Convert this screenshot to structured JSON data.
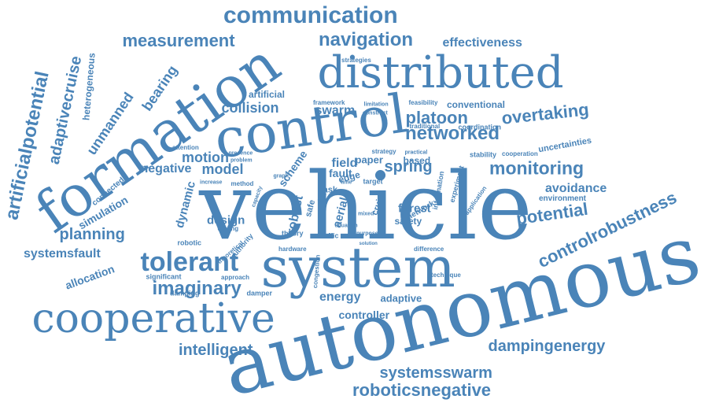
{
  "color": "#4a84b8",
  "words": [
    {
      "text": "vehicle"
    },
    {
      "text": "autonomous"
    },
    {
      "text": "system"
    },
    {
      "text": "distributed"
    },
    {
      "text": "control"
    },
    {
      "text": "formation"
    },
    {
      "text": "cooperative"
    },
    {
      "text": "communication"
    },
    {
      "text": "navigation"
    },
    {
      "text": "measurement"
    },
    {
      "text": "effectiveness"
    },
    {
      "text": "networked"
    },
    {
      "text": "overtaking"
    },
    {
      "text": "platoon"
    },
    {
      "text": "monitoring"
    },
    {
      "text": "avoidance"
    },
    {
      "text": "environment"
    },
    {
      "text": "uncertainties"
    },
    {
      "text": "potential"
    },
    {
      "text": "controlrobustness"
    },
    {
      "text": "tolerant"
    },
    {
      "text": "imaginary"
    },
    {
      "text": "planning"
    },
    {
      "text": "systemsfault"
    },
    {
      "text": "allocation"
    },
    {
      "text": "intelligent"
    },
    {
      "text": "controller"
    },
    {
      "text": "energy"
    },
    {
      "text": "adaptive"
    },
    {
      "text": "dampingenergy"
    },
    {
      "text": "systemsswarm"
    },
    {
      "text": "roboticsnegative"
    },
    {
      "text": "artificialpotential"
    },
    {
      "text": "adaptivecruise"
    },
    {
      "text": "unmanned"
    },
    {
      "text": "heterogeneous"
    },
    {
      "text": "bearing"
    },
    {
      "text": "collision"
    },
    {
      "text": "swarm"
    },
    {
      "text": "artificial"
    },
    {
      "text": "motion"
    },
    {
      "text": "negative"
    },
    {
      "text": "model"
    },
    {
      "text": "spring"
    },
    {
      "text": "field"
    },
    {
      "text": "fault"
    },
    {
      "text": "forest"
    },
    {
      "text": "design"
    },
    {
      "text": "dynamic"
    },
    {
      "text": "simulation"
    },
    {
      "text": "connected"
    },
    {
      "text": "robotic"
    },
    {
      "text": "significant"
    },
    {
      "text": "damping"
    },
    {
      "text": "damper"
    },
    {
      "text": "approach"
    },
    {
      "text": "conventional"
    },
    {
      "text": "coordination"
    },
    {
      "text": "stability"
    },
    {
      "text": "cooperation"
    },
    {
      "text": "feasibility"
    },
    {
      "text": "traditional"
    },
    {
      "text": "strategies"
    },
    {
      "text": "framework"
    },
    {
      "text": "construct"
    },
    {
      "text": "limitation"
    },
    {
      "text": "attention"
    },
    {
      "text": "presence"
    },
    {
      "text": "problem"
    },
    {
      "text": "method"
    },
    {
      "text": "increase"
    },
    {
      "text": "capacity"
    },
    {
      "text": "task"
    },
    {
      "text": "edge"
    },
    {
      "text": "target"
    },
    {
      "text": "scheme"
    },
    {
      "text": "paper"
    },
    {
      "text": "based"
    },
    {
      "text": "strategy"
    },
    {
      "text": "practical"
    },
    {
      "text": "safety"
    },
    {
      "text": "network"
    },
    {
      "text": "cruise"
    },
    {
      "text": "aerial"
    },
    {
      "text": "robust"
    },
    {
      "text": "safe"
    },
    {
      "text": "theory"
    },
    {
      "text": "traffic"
    },
    {
      "text": "hardware"
    },
    {
      "text": "difference"
    },
    {
      "text": "technique"
    },
    {
      "text": "congestion"
    },
    {
      "text": "experiment"
    },
    {
      "text": "information"
    },
    {
      "text": "application"
    },
    {
      "text": "driving"
    },
    {
      "text": "theoretical"
    },
    {
      "text": "authority"
    },
    {
      "text": "mixed"
    },
    {
      "text": "purpose"
    },
    {
      "text": "solution"
    },
    {
      "text": "situation"
    },
    {
      "text": "graph"
    },
    {
      "text": "time"
    },
    {
      "text": "fire"
    }
  ]
}
